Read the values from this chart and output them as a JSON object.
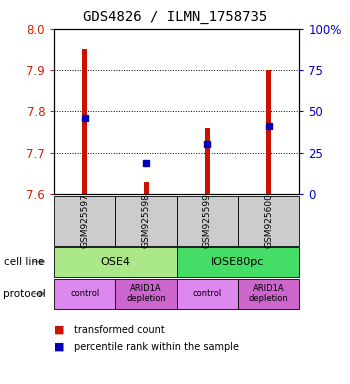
{
  "title": "GDS4826 / ILMN_1758735",
  "samples": [
    "GSM925597",
    "GSM925598",
    "GSM925599",
    "GSM925600"
  ],
  "red_values": [
    7.95,
    7.63,
    7.76,
    7.9
  ],
  "blue_values": [
    7.785,
    7.675,
    7.72,
    7.765
  ],
  "ylim": [
    7.6,
    8.0
  ],
  "yticks": [
    7.6,
    7.7,
    7.8,
    7.9,
    8.0
  ],
  "y2ticks": [
    0,
    25,
    50,
    75,
    100
  ],
  "y2labels": [
    "0",
    "25",
    "50",
    "75",
    "100%"
  ],
  "cell_line_labels": [
    "OSE4",
    "IOSE80pc"
  ],
  "cell_line_spans": [
    [
      0,
      2
    ],
    [
      2,
      4
    ]
  ],
  "cell_line_colors": [
    "#aae888",
    "#44dd66"
  ],
  "protocol_labels": [
    "control",
    "ARID1A\ndepletion",
    "control",
    "ARID1A\ndepletion"
  ],
  "protocol_colors": [
    "#dd88ee",
    "#cc66cc",
    "#dd88ee",
    "#cc66cc"
  ],
  "bg_color": "#ffffff",
  "bar_color": "#cc1100",
  "dot_color": "#0000bb",
  "grid_color": "#000000",
  "label_color_left": "#cc2200",
  "label_color_right": "#0000cc",
  "bar_width": 0.08,
  "sample_box_color": "#cccccc",
  "arrow_color": "#999999"
}
